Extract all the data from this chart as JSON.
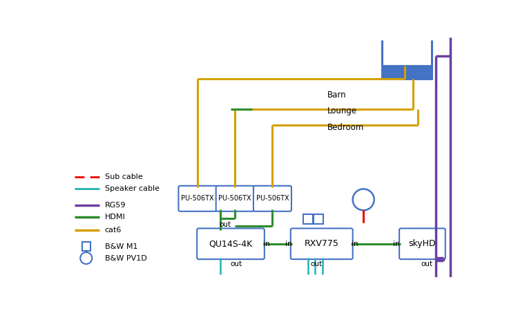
{
  "bg_color": "#ffffff",
  "colors": {
    "purple": "#6b3fa0",
    "green": "#2e8b2e",
    "yellow": "#d4a000",
    "red": "#ee0000",
    "cyan": "#20b2b2",
    "blue_box": "#4472C4",
    "blue_border": "#4472C4"
  },
  "legend": {
    "sub_cable": "Sub cable",
    "speaker_cable": "Speaker cable",
    "rg59": "RG59",
    "hdmi": "HDMI",
    "cat6": "cat6",
    "bw_m1": "B&W M1",
    "bw_pv1d": "B&W PV1D"
  }
}
